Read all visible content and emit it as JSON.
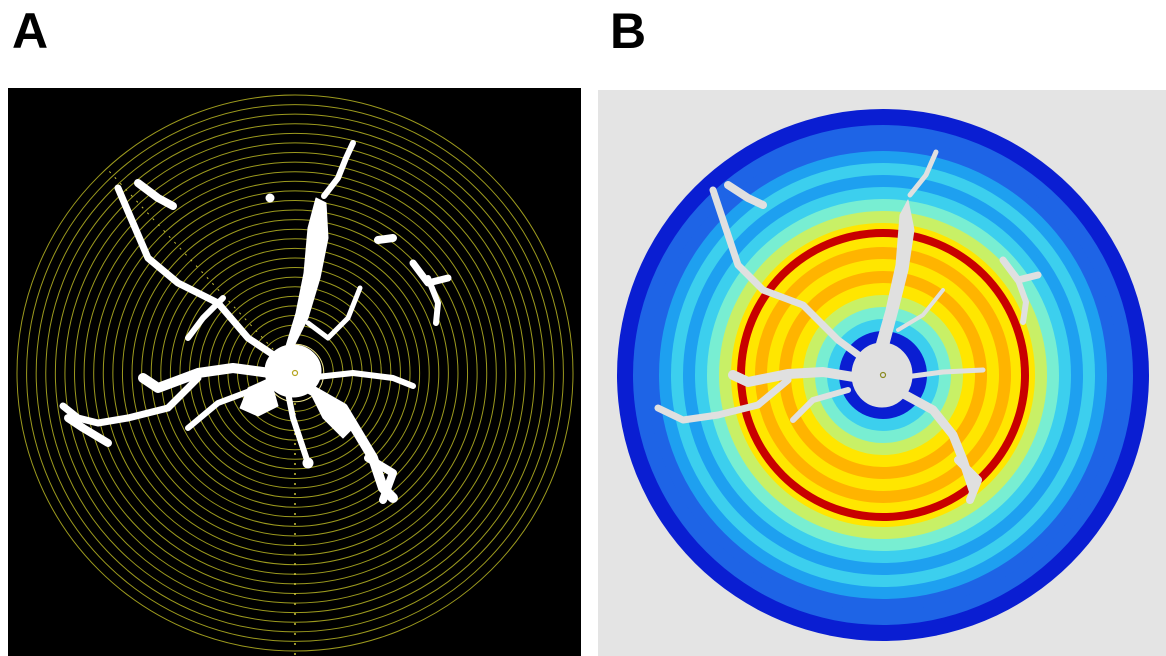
{
  "labels": {
    "a": "A",
    "b": "B"
  },
  "colors": {
    "panel_a_bg": "#000000",
    "grid_ring": "#9c9a1e",
    "cell": "#ffffff",
    "center_marker": "#e6d23a",
    "panel_b_bg": "#e4e4e4",
    "heat_scale": [
      "#0a1ed2",
      "#1e64e6",
      "#1ea0f0",
      "#3ccfee",
      "#78eed2",
      "#c8f066",
      "#ffe600",
      "#ffb400",
      "#ff7800",
      "#c80000"
    ]
  },
  "panel_a": {
    "shells": 29,
    "content": "sholl-analysis-concentric-circles-over-cell"
  },
  "panel_b": {
    "content": "heatmap-of-intersections-per-shell"
  }
}
